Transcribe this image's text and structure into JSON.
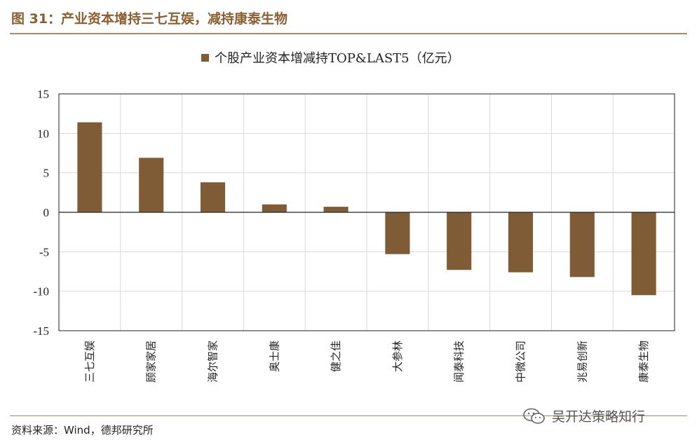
{
  "figure": {
    "caption": "图 31：产业资本增持三七互娱，减持康泰生物",
    "source": "资料来源：Wind，德邦研究所",
    "watermark": "吴开达策略知行"
  },
  "colors": {
    "bar": "#7f5c35",
    "accent": "#8a5e2e",
    "rule": "#b08a60"
  },
  "chart_data": {
    "type": "bar",
    "title": "",
    "legend": "个股产业资本增减持TOP&LAST5（亿元）",
    "legend_position": "top-center",
    "categories": [
      "三七互娱",
      "顾家家居",
      "海尔智家",
      "奥士康",
      "健之佳",
      "大参林",
      "闻泰科技",
      "中微公司",
      "兆易创新",
      "康泰生物"
    ],
    "series": [
      {
        "name": "个股产业资本增减持TOP&LAST5（亿元）",
        "values": [
          11.4,
          6.9,
          3.8,
          1.0,
          0.7,
          -5.3,
          -7.3,
          -7.6,
          -8.2,
          -10.5
        ]
      }
    ],
    "ylim": [
      -15,
      15
    ],
    "yticks": [
      15,
      10,
      5,
      0,
      -5,
      -10,
      -15
    ],
    "xlabel": "",
    "ylabel": "",
    "grid": true
  }
}
